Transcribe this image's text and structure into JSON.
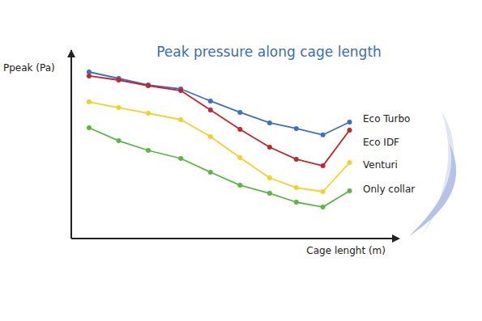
{
  "chart_data": {
    "type": "line",
    "title": "Peak pressure along cage length",
    "x_label": "Cage lenght (m)",
    "y_label": "Ppeak (Pa)",
    "x": [
      0.6,
      1.6,
      2.6,
      3.7,
      4.7,
      5.7,
      6.7,
      7.6,
      8.5,
      9.4
    ],
    "xlim": [
      0,
      11
    ],
    "ylim": [
      0,
      100
    ],
    "series": [
      {
        "name": "Eco Turbo",
        "color": "#3f6fc4",
        "values": [
          88.4,
          85.0,
          81.5,
          79.4,
          73.0,
          67.0,
          61.4,
          58.4,
          55.0,
          61.8
        ]
      },
      {
        "name": "Eco IDF",
        "color": "#c1272d",
        "values": [
          86.3,
          84.1,
          81.1,
          78.5,
          68.2,
          57.9,
          48.5,
          42.1,
          38.6,
          57.5
        ]
      },
      {
        "name": "Venturi",
        "color": "#f2d12b",
        "values": [
          72.5,
          69.5,
          66.5,
          63.1,
          54.1,
          42.9,
          32.2,
          27.0,
          24.9,
          40.3
        ]
      },
      {
        "name": "Only collar",
        "color": "#5cb545",
        "values": [
          58.8,
          51.9,
          46.8,
          42.5,
          35.2,
          28.3,
          24.0,
          19.3,
          16.7,
          25.3
        ]
      }
    ],
    "marker": "circle",
    "grid": false,
    "tick_labels": false,
    "legend": "right"
  }
}
